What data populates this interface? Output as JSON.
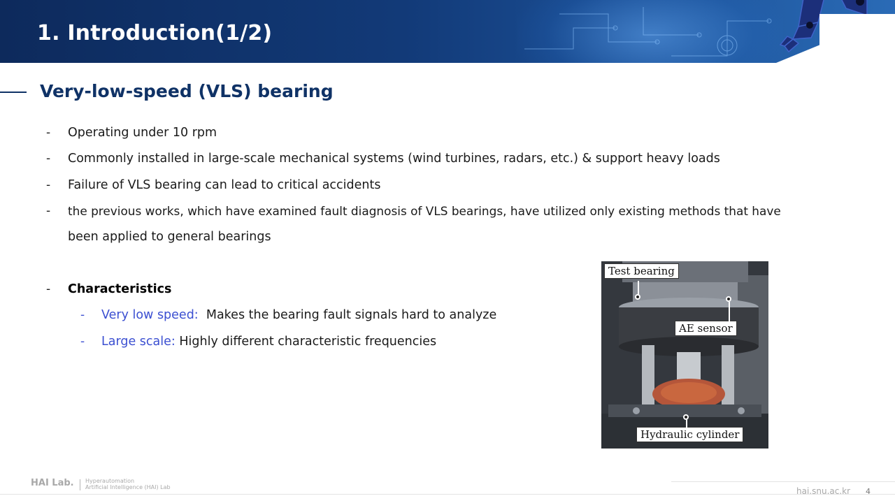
{
  "slide": {
    "title": "1. Introduction(1/2)",
    "section_title": "Very-low-speed (VLS) bearing",
    "bullets": [
      "Operating under 10 rpm",
      "Commonly installed in large-scale mechanical systems (wind turbines, radars, etc.) & support heavy loads",
      "Failure of VLS bearing can lead to critical accidents",
      "the previous works, which have examined fault diagnosis of VLS bearings, have utilized only existing methods that have",
      "been applied to general bearings"
    ],
    "characteristics": {
      "heading": "Characteristics",
      "items": [
        {
          "label": "Very low speed:",
          "text": "Makes the bearing fault signals hard to analyze"
        },
        {
          "label": "Large scale:",
          "text": "Highly different characteristic frequencies"
        }
      ]
    },
    "figure": {
      "labels": [
        "Test bearing",
        "AE sensor",
        "Hydraulic cylinder"
      ]
    }
  },
  "footer": {
    "logo": "HAI Lab.",
    "subtitle_line1": "Hyperautomation",
    "subtitle_line2": "Artificial Intelligence (HAI) Lab",
    "url": "hai.snu.ac.kr",
    "page_number": "4"
  },
  "colors": {
    "header": "#123a78",
    "section": "#0f3266",
    "accent_blue": "#3b4fd1"
  }
}
